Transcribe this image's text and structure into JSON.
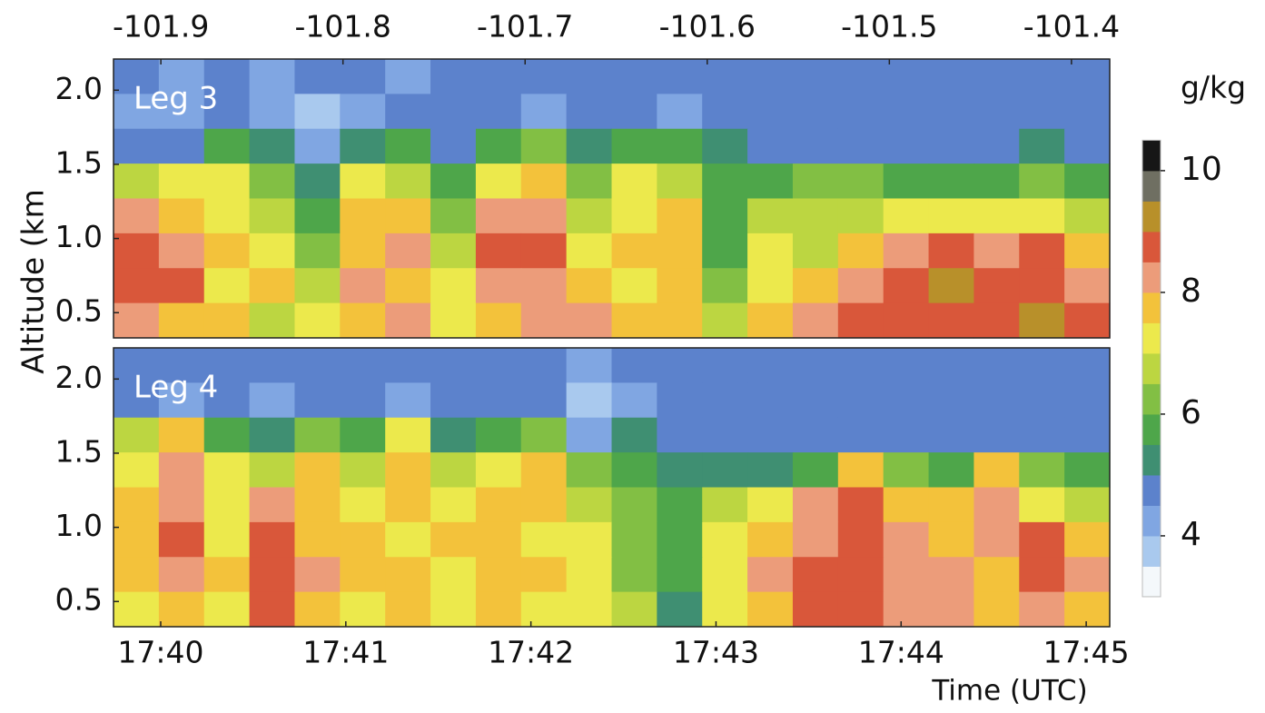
{
  "chart_data": {
    "type": "heatmap",
    "ylabel": "Altitude (km",
    "xlabel": "Time (UTC)",
    "xlim": [
      39.745,
      45.127
    ],
    "xticks": [
      {
        "value": 40,
        "label": "17:40"
      },
      {
        "value": 41,
        "label": "17:41"
      },
      {
        "value": 42,
        "label": "17:42"
      },
      {
        "value": 43,
        "label": "17:43"
      },
      {
        "value": 44,
        "label": "17:44"
      },
      {
        "value": 45,
        "label": "17:45"
      }
    ],
    "x2lim": [
      -101.926,
      -101.379
    ],
    "x2ticks": [
      -101.9,
      -101.8,
      -101.7,
      -101.6,
      -101.5,
      -101.4
    ],
    "ylim": [
      0.33,
      2.21
    ],
    "yticks": [
      0.5,
      {
        "value": 1,
        "label": "1.0"
      },
      1.5,
      {
        "value": 2,
        "label": "2.0"
      }
    ],
    "colorbar": {
      "label": "g/kg",
      "lim": [
        2.88,
        10.64
      ],
      "ticks": [
        4,
        6,
        8,
        10
      ],
      "levels": [
        3,
        3.5,
        4,
        4.5,
        5,
        5.5,
        6,
        6.5,
        7,
        7.5,
        8,
        8.5,
        9,
        9.5,
        10,
        10.5
      ],
      "colors": [
        "#f4f8fb",
        "#a9c9ee",
        "#80a6e2",
        "#5c82cc",
        "#3f8f72",
        "#4ea64a",
        "#82bf44",
        "#bcd641",
        "#ece94c",
        "#f3c23b",
        "#ec9c7a",
        "#d9573a",
        "#b8902a",
        "#6f6f62",
        "#161616"
      ]
    },
    "panels": [
      {
        "label": "Leg 3",
        "values": [
          [
            4.5,
            4,
            4.5,
            4,
            4.5,
            4.5,
            4,
            4.5,
            4.5,
            4.5,
            4.5,
            4.5,
            4.5,
            4.5,
            4.5,
            4.5,
            4.5,
            4.5,
            4.5,
            4.5,
            4.5,
            4.5
          ],
          [
            4,
            4,
            4.5,
            4,
            3.5,
            4,
            4.5,
            4.5,
            4.5,
            4,
            4.5,
            4.5,
            4,
            4.5,
            4.5,
            4.5,
            4.5,
            4.5,
            4.5,
            4.5,
            4.5,
            4.5
          ],
          [
            4.5,
            4.5,
            5.5,
            5,
            4,
            5,
            5.5,
            4.5,
            5.5,
            6,
            5,
            5.5,
            5.5,
            5,
            4.5,
            4.5,
            4.5,
            4.5,
            4.5,
            4.5,
            5,
            4.5
          ],
          [
            6.5,
            7,
            7,
            6,
            5,
            7,
            6.5,
            5.5,
            7,
            7.5,
            6,
            7,
            6.5,
            5.5,
            5.5,
            6,
            6,
            5.5,
            5.5,
            5.5,
            6,
            5.5
          ],
          [
            8,
            7.5,
            7,
            6.5,
            5.5,
            7.5,
            7.5,
            6,
            8,
            8,
            6.5,
            7,
            7.5,
            5.5,
            6.5,
            6.5,
            6.5,
            7,
            7,
            7,
            7,
            6.5
          ],
          [
            8.5,
            8,
            7.5,
            7,
            6,
            7.5,
            8,
            6.5,
            8.5,
            8.5,
            7,
            7.5,
            7.5,
            5.5,
            7,
            6.5,
            7.5,
            8,
            8.5,
            8,
            8.5,
            7.5
          ],
          [
            8.5,
            8.5,
            7,
            7.5,
            6.5,
            8,
            7.5,
            7,
            8,
            8,
            7.5,
            7,
            7.5,
            6,
            7,
            7.5,
            8,
            8.5,
            9,
            8.5,
            8.5,
            8
          ],
          [
            8,
            7.5,
            7.5,
            6.5,
            7,
            7.5,
            8,
            7,
            7.5,
            8,
            8,
            7.5,
            7.5,
            6.5,
            7.5,
            8,
            8.5,
            8.5,
            8.5,
            8.5,
            9,
            8.5
          ]
        ]
      },
      {
        "label": "Leg 4",
        "values": [
          [
            4.5,
            4.5,
            4.5,
            4.5,
            4.5,
            4.5,
            4.5,
            4.5,
            4.5,
            4.5,
            4,
            4.5,
            4.5,
            4.5,
            4.5,
            4.5,
            4.5,
            4.5,
            4.5,
            4.5,
            4.5,
            4.5
          ],
          [
            4.5,
            4,
            4.5,
            4,
            4.5,
            4.5,
            4,
            4.5,
            4.5,
            4.5,
            3.5,
            4,
            4.5,
            4.5,
            4.5,
            4.5,
            4.5,
            4.5,
            4.5,
            4.5,
            4.5,
            4.5
          ],
          [
            6.5,
            7.5,
            5.5,
            5,
            6,
            5.5,
            7,
            5,
            5.5,
            6,
            4,
            5,
            4.5,
            4.5,
            4.5,
            4.5,
            4.5,
            4.5,
            4.5,
            4.5,
            4.5,
            4.5
          ],
          [
            7,
            8,
            7,
            6.5,
            7.5,
            6.5,
            7.5,
            6.5,
            7,
            7.5,
            6,
            5.5,
            5,
            5,
            5,
            5.5,
            7.5,
            6,
            5.5,
            7.5,
            6,
            5.5
          ],
          [
            7.5,
            8,
            7,
            8,
            7.5,
            7,
            7.5,
            7,
            7.5,
            7.5,
            6.5,
            6,
            5.5,
            6.5,
            7,
            8,
            8.5,
            7.5,
            7.5,
            8,
            7,
            6.5
          ],
          [
            7.5,
            8.5,
            7,
            8.5,
            7.5,
            7.5,
            7,
            7.5,
            7.5,
            7,
            7,
            6,
            5.5,
            7,
            7.5,
            8,
            8.5,
            8,
            7.5,
            8,
            8.5,
            7.5
          ],
          [
            7.5,
            8,
            7.5,
            8.5,
            8,
            7.5,
            7.5,
            7,
            7.5,
            7.5,
            7,
            6,
            5.5,
            7,
            8,
            8.5,
            8.5,
            8,
            8,
            7.5,
            8.5,
            8
          ],
          [
            7,
            7.5,
            7,
            8.5,
            7.5,
            7,
            7.5,
            7,
            7.5,
            7,
            7,
            6.5,
            5,
            7,
            7.5,
            8.5,
            8.5,
            8,
            8,
            7.5,
            8,
            7.5
          ]
        ]
      }
    ]
  }
}
